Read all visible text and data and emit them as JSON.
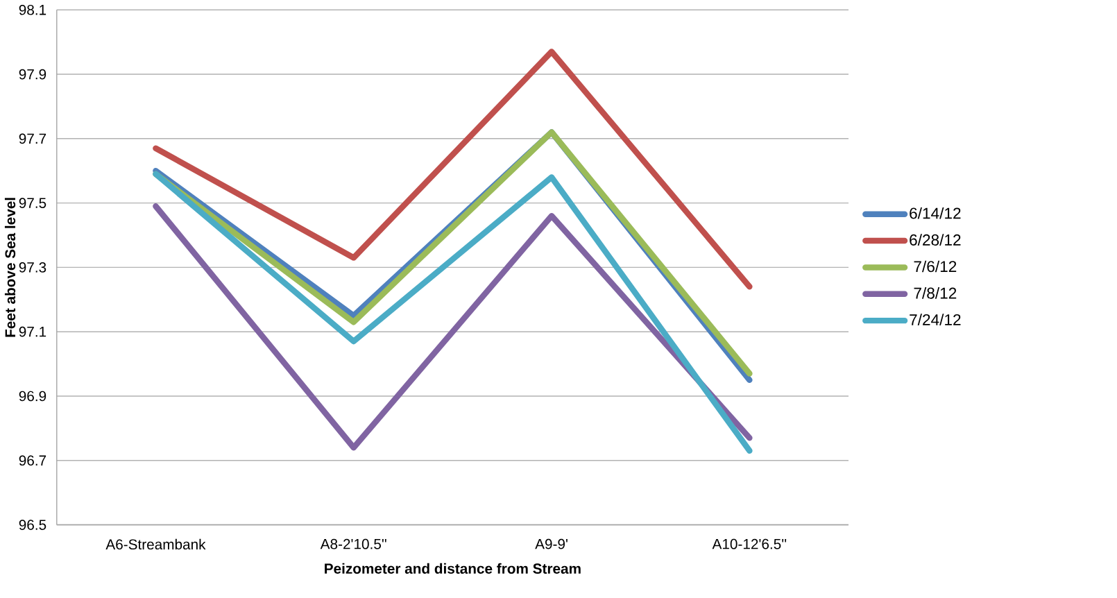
{
  "chart_data": {
    "type": "line",
    "xlabel": "Peizometer and distance from Stream",
    "ylabel": "Feet above Sea level",
    "categories": [
      "A6-Streambank",
      "A8-2'10.5''",
      "A9-9'",
      "A10-12'6.5''"
    ],
    "series": [
      {
        "name": "6/14/12",
        "color": "#4f81bd",
        "values": [
          97.6,
          97.15,
          97.72,
          96.95
        ]
      },
      {
        "name": "6/28/12",
        "color": "#c0504d",
        "values": [
          97.67,
          97.33,
          97.97,
          97.24
        ]
      },
      {
        "name": "7/6/12",
        "color": "#9bbb59",
        "values": [
          97.59,
          97.13,
          97.72,
          96.97
        ]
      },
      {
        "name": "7/8/12",
        "color": "#8064a2",
        "values": [
          97.49,
          96.74,
          97.46,
          96.77
        ]
      },
      {
        "name": "7/24/12",
        "color": "#4bacc6",
        "values": [
          97.59,
          97.07,
          97.58,
          96.73
        ]
      }
    ],
    "ylim": [
      96.5,
      98.1
    ],
    "yticks": [
      {
        "value": 96.5,
        "label": "96.5"
      },
      {
        "value": 96.7,
        "label": "96.7"
      },
      {
        "value": 96.9,
        "label": "96.9"
      },
      {
        "value": 97.1,
        "label": "97.1"
      },
      {
        "value": 97.3,
        "label": "97.3"
      },
      {
        "value": 97.5,
        "label": "97.5"
      },
      {
        "value": 97.7,
        "label": "97.7"
      },
      {
        "value": 97.9,
        "label": "97.9"
      },
      {
        "value": 98.1,
        "label": "98.1"
      }
    ],
    "grid": "y",
    "legend": "right",
    "marker": "none",
    "line_style": "solid"
  }
}
